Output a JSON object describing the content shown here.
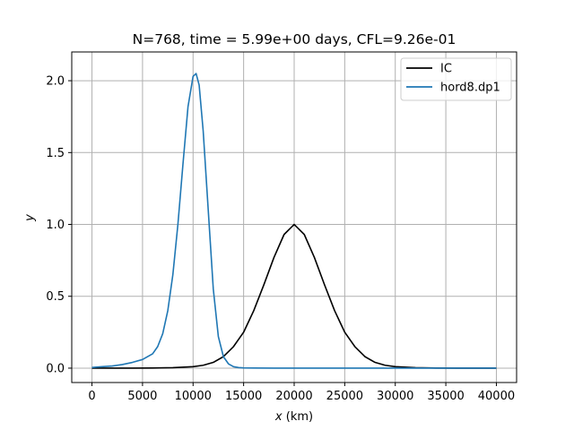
{
  "chart_data": {
    "type": "line",
    "title": "N=768, time = 5.99e+00 days, CFL=9.26e-01",
    "xlabel": "x (km)",
    "xlabel_italic_part": "x",
    "xlabel_rest": " (km)",
    "ylabel": "y",
    "xlim": [
      -2000,
      42000
    ],
    "ylim": [
      -0.1,
      2.2
    ],
    "xticks": [
      0,
      5000,
      10000,
      15000,
      20000,
      25000,
      30000,
      35000,
      40000
    ],
    "yticks": [
      0.0,
      0.5,
      1.0,
      1.5,
      2.0
    ],
    "xtick_labels": [
      "0",
      "5000",
      "10000",
      "15000",
      "20000",
      "25000",
      "30000",
      "35000",
      "40000"
    ],
    "ytick_labels": [
      "0.0",
      "0.5",
      "1.0",
      "1.5",
      "2.0"
    ],
    "grid": true,
    "legend_position": "top-right",
    "series": [
      {
        "name": "IC",
        "color": "#000000",
        "x": [
          0,
          2000,
          4000,
          6000,
          8000,
          10000,
          11000,
          12000,
          13000,
          14000,
          15000,
          16000,
          17000,
          18000,
          19000,
          20000,
          21000,
          22000,
          23000,
          24000,
          25000,
          26000,
          27000,
          28000,
          29000,
          30000,
          32000,
          34000,
          36000,
          38000,
          40000
        ],
        "y": [
          0.0,
          0.0,
          0.0,
          0.001,
          0.003,
          0.01,
          0.02,
          0.04,
          0.08,
          0.15,
          0.25,
          0.4,
          0.58,
          0.77,
          0.93,
          1.0,
          0.93,
          0.77,
          0.58,
          0.4,
          0.25,
          0.15,
          0.08,
          0.04,
          0.02,
          0.01,
          0.003,
          0.001,
          0.0,
          0.0,
          0.0
        ]
      },
      {
        "name": "hord8.dp1",
        "color": "#1f77b4",
        "x": [
          0,
          1000,
          2000,
          3000,
          4000,
          5000,
          6000,
          6500,
          7000,
          7500,
          8000,
          8500,
          9000,
          9500,
          10000,
          10300,
          10600,
          11000,
          11500,
          12000,
          12500,
          13000,
          13500,
          14000,
          14500,
          15000,
          16000,
          18000,
          20000,
          25000,
          30000,
          35000,
          40000
        ],
        "y": [
          0.005,
          0.01,
          0.015,
          0.025,
          0.04,
          0.06,
          0.1,
          0.15,
          0.24,
          0.4,
          0.65,
          1.0,
          1.42,
          1.82,
          2.03,
          2.05,
          1.97,
          1.65,
          1.1,
          0.55,
          0.22,
          0.08,
          0.03,
          0.01,
          0.004,
          0.002,
          0.001,
          0.0,
          0.0,
          0.0,
          0.0,
          0.0,
          0.0
        ]
      }
    ]
  }
}
